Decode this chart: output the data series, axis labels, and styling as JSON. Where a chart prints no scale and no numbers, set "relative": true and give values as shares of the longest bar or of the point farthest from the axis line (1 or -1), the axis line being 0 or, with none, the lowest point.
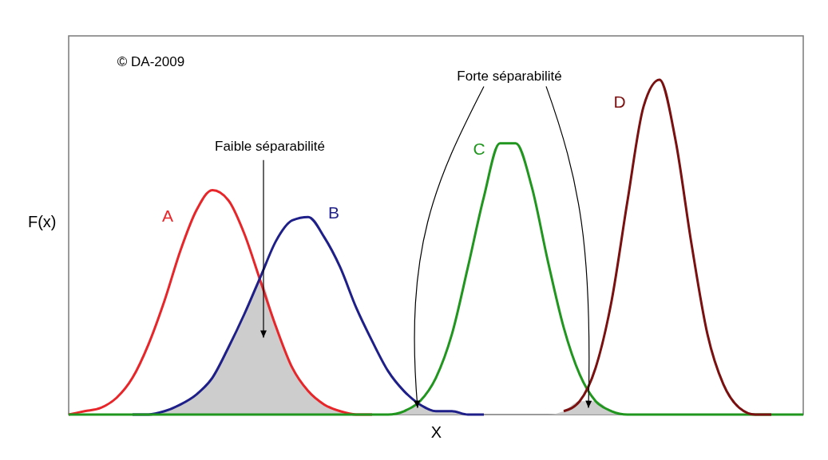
{
  "chart_data": {
    "type": "line",
    "relative": true,
    "xlabel": "X",
    "ylabel": "F(x)",
    "categories": [
      null,
      null,
      null,
      null,
      null,
      null,
      null,
      null,
      null,
      null,
      null,
      null,
      null,
      null,
      null,
      null,
      null,
      null,
      null,
      null,
      null,
      null,
      null,
      null,
      null,
      null,
      null,
      null,
      null,
      null,
      null,
      null,
      null,
      null,
      null,
      null,
      null,
      null,
      null,
      null,
      null,
      null,
      null,
      null,
      null,
      null,
      null
    ],
    "series": [
      {
        "type": "area",
        "color": "#c8c8c8",
        "values": [
          null,
          null,
          null,
          null,
          0.0,
          0.0,
          0.01,
          0.03,
          0.06,
          0.11,
          0.2,
          0.3,
          0.4,
          0.26,
          0.14,
          0.07,
          0.03,
          0.01,
          0.0,
          0.0,
          0.0,
          0.01,
          0.03,
          0.01,
          0.01,
          0.0,
          0.0,
          0.0,
          0.0,
          0.0,
          0.0,
          0.01,
          0.04,
          0.04,
          0.01,
          0.0,
          null,
          null,
          null,
          null,
          null,
          null,
          null,
          null,
          null,
          null,
          null
        ]
      },
      {
        "name": "A",
        "color": "#e8262a",
        "values": [
          0.0,
          0.01,
          0.02,
          0.05,
          0.11,
          0.21,
          0.34,
          0.49,
          0.61,
          0.67,
          0.64,
          0.54,
          0.4,
          0.26,
          0.14,
          0.07,
          0.03,
          0.01,
          0.0,
          0.0,
          null,
          null,
          null,
          null,
          null,
          null,
          null,
          null,
          null,
          null,
          null,
          null,
          null,
          null,
          null,
          null,
          null,
          null,
          null,
          null,
          null,
          null,
          null,
          null,
          null,
          null,
          null
        ]
      },
      {
        "name": "B",
        "color": "#1f1f8a",
        "values": [
          null,
          null,
          null,
          null,
          0.0,
          0.0,
          0.01,
          0.03,
          0.06,
          0.11,
          0.2,
          0.3,
          0.41,
          0.52,
          0.58,
          0.59,
          0.53,
          0.44,
          0.32,
          0.22,
          0.13,
          0.07,
          0.03,
          0.01,
          0.01,
          0.0,
          0.0,
          null,
          null,
          null,
          null,
          null,
          null,
          null,
          null,
          null,
          null,
          null,
          null,
          null,
          null,
          null,
          null,
          null,
          null,
          null,
          null
        ]
      },
      {
        "name": "C",
        "color": "#20961f",
        "values": [
          0,
          0,
          0,
          0,
          0,
          0,
          0,
          0,
          0,
          0,
          0,
          0,
          0,
          0,
          0,
          0,
          0,
          0,
          0,
          0,
          0.0,
          0.01,
          0.04,
          0.11,
          0.24,
          0.44,
          0.65,
          0.81,
          0.81,
          0.68,
          0.46,
          0.26,
          0.12,
          0.04,
          0.01,
          0.0,
          0,
          0,
          0,
          0,
          0,
          0,
          0,
          0,
          0,
          0,
          0
        ]
      },
      {
        "name": "D",
        "color": "#7a1010",
        "values": [
          null,
          null,
          null,
          null,
          null,
          null,
          null,
          null,
          null,
          null,
          null,
          null,
          null,
          null,
          null,
          null,
          null,
          null,
          null,
          null,
          null,
          null,
          null,
          null,
          null,
          null,
          null,
          null,
          null,
          null,
          null,
          0.01,
          0.04,
          0.14,
          0.34,
          0.64,
          0.92,
          1.0,
          0.82,
          0.51,
          0.24,
          0.09,
          0.02,
          0.0,
          0.0,
          null,
          null
        ]
      }
    ],
    "annotations": [
      "© DA-2009",
      "Faible séparabilité",
      "Forte séparabilité"
    ]
  }
}
